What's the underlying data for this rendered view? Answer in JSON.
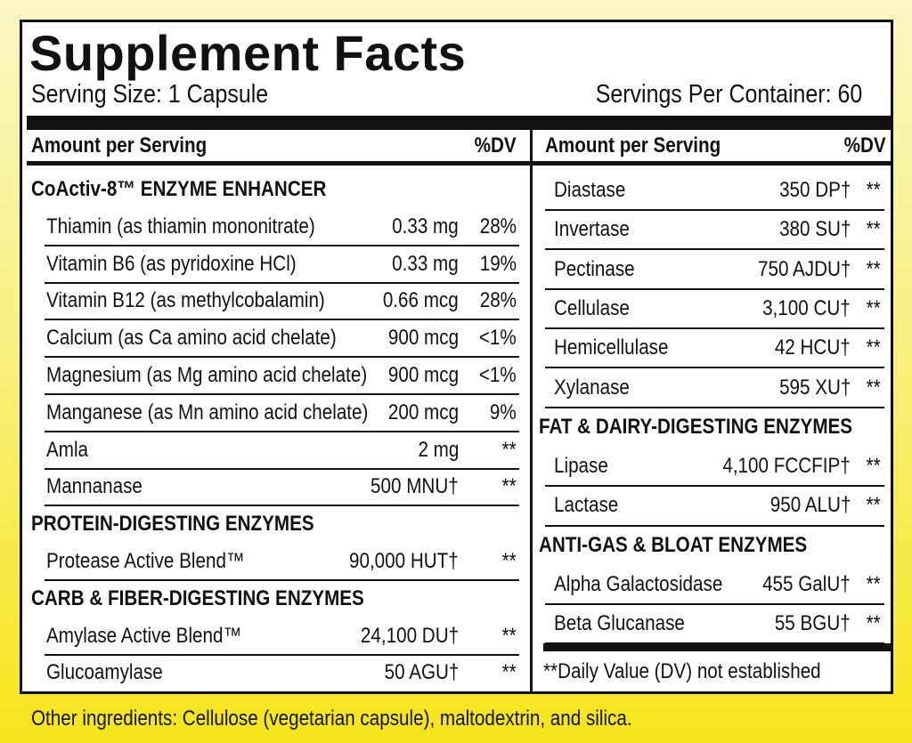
{
  "title": "Supplement Facts",
  "serving_size": "Serving Size: 1 Capsule",
  "servings_per_container": "Servings Per Container: 60",
  "left": {
    "header": {
      "amount": "Amount per Serving",
      "dv": "%DV"
    },
    "sections": [
      {
        "name": "CoActiv-8™ ENZYME ENHANCER",
        "rows": [
          [
            "Thiamin (as thiamin mononitrate)",
            "0.33 mg",
            "28%"
          ],
          [
            "Vitamin B6 (as pyridoxine HCl)",
            "0.33 mg",
            "19%"
          ],
          [
            "Vitamin B12 (as methylcobalamin)",
            "0.66 mcg",
            "28%"
          ],
          [
            "Calcium (as Ca amino acid chelate)",
            "900 mcg",
            "<1%"
          ],
          [
            "Magnesium (as Mg amino acid chelate)",
            "900 mcg",
            "<1%"
          ],
          [
            "Manganese (as Mn amino acid chelate)",
            "200 mcg",
            "9%"
          ],
          [
            "Amla",
            "2 mg",
            "**"
          ],
          [
            "Mannanase",
            "500 MNU†",
            "**"
          ]
        ]
      },
      {
        "name": "PROTEIN-DIGESTING ENZYMES",
        "rows": [
          [
            "Protease Active Blend™",
            "90,000 HUT†",
            "**"
          ]
        ]
      },
      {
        "name": "CARB & FIBER-DIGESTING ENZYMES",
        "rows": [
          [
            "Amylase Active Blend™",
            "24,100 DU†",
            "**"
          ],
          [
            "Glucoamylase",
            "50 AGU†",
            "**"
          ]
        ]
      }
    ]
  },
  "right": {
    "header": {
      "amount": "Amount per Serving",
      "dv": "%DV"
    },
    "sections": [
      {
        "name": null,
        "rows": [
          [
            "Diastase",
            "350 DP†",
            "**"
          ],
          [
            "Invertase",
            "380 SU†",
            "**"
          ],
          [
            "Pectinase",
            "750 AJDU†",
            "**"
          ],
          [
            "Cellulase",
            "3,100 CU†",
            "**"
          ],
          [
            "Hemicellulase",
            "42 HCU†",
            "**"
          ],
          [
            "Xylanase",
            "595 XU†",
            "**"
          ]
        ]
      },
      {
        "name": "FAT & DAIRY-DIGESTING ENZYMES",
        "rows": [
          [
            "Lipase",
            "4,100 FCCFIP†",
            "**"
          ],
          [
            "Lactase",
            "950 ALU†",
            "**"
          ]
        ]
      },
      {
        "name": "ANTI-GAS & BLOAT ENZYMES",
        "rows": [
          [
            "Alpha Galactosidase",
            "455 GalU†",
            "**"
          ],
          [
            "Beta Glucanase",
            "55 BGU†",
            "**"
          ]
        ]
      }
    ]
  },
  "footnote": "**Daily Value (DV) not established",
  "other_ingredients": "Other ingredients: Cellulose (vegetarian capsule), maltodextrin, and silica."
}
